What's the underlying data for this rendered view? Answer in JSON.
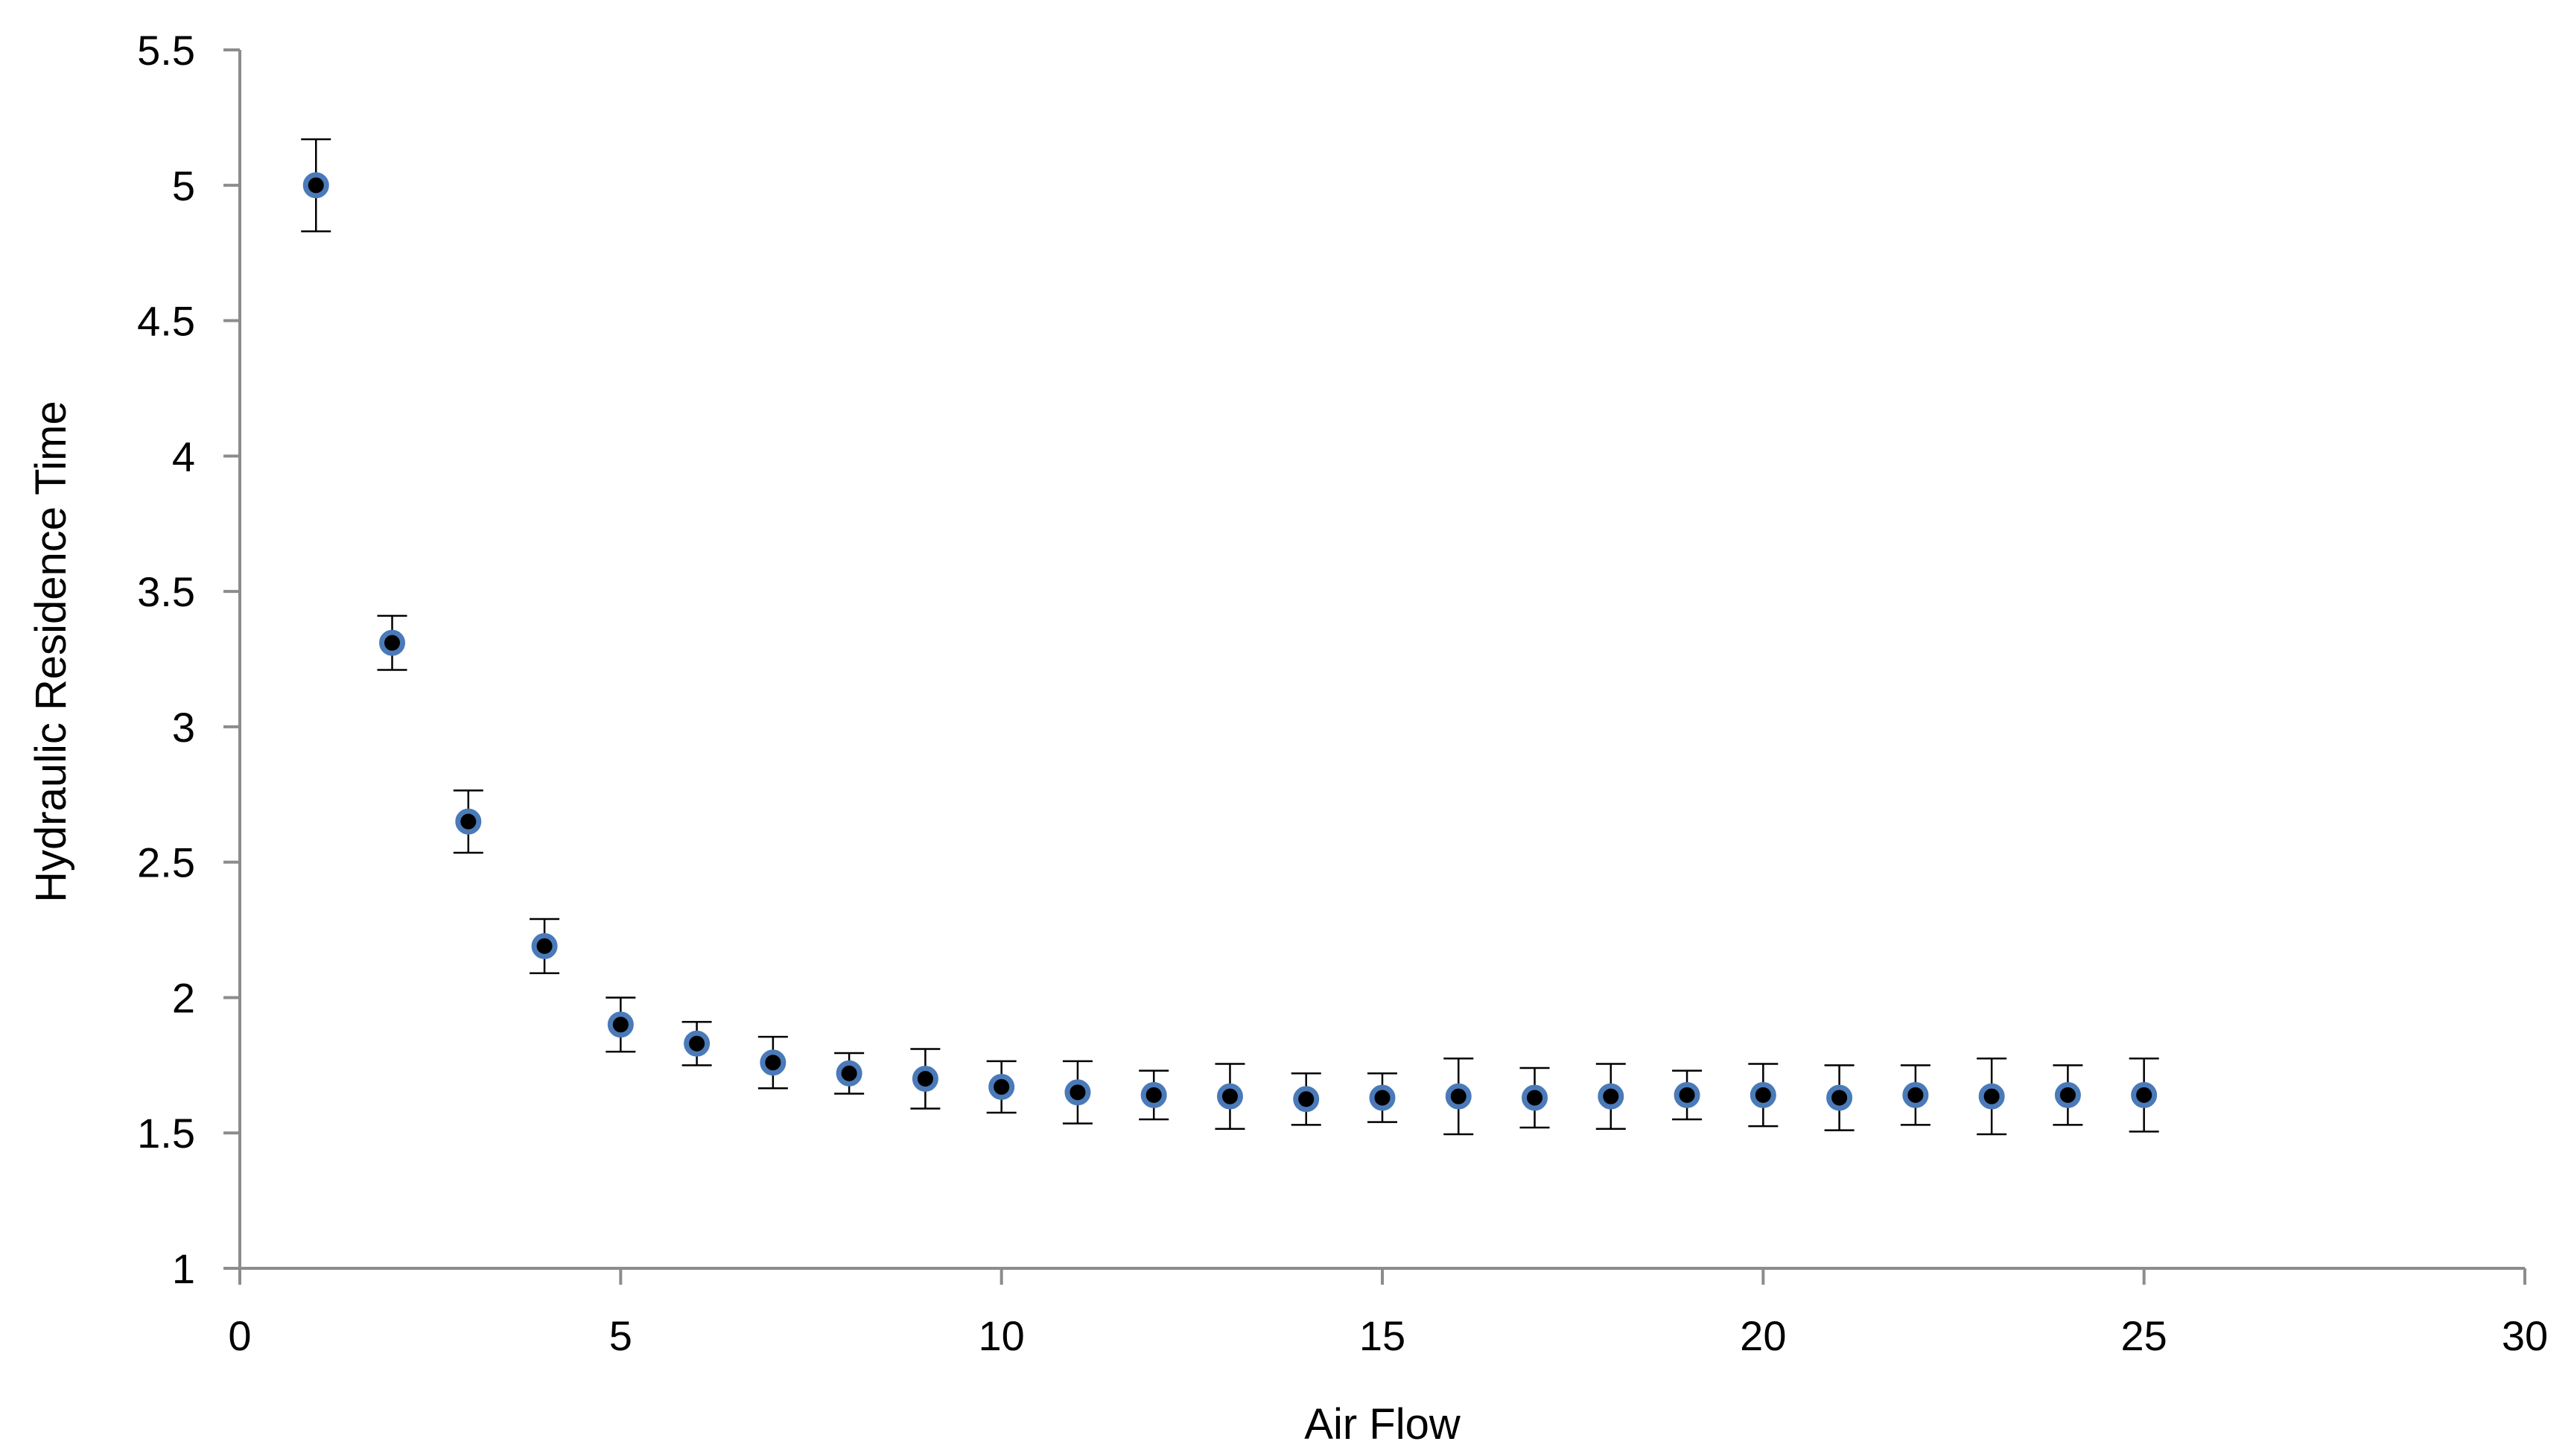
{
  "chart_data": {
    "type": "scatter",
    "title": "",
    "xlabel": "Air Flow",
    "ylabel": "Hydraulic Residence Time",
    "xlim": [
      0,
      30
    ],
    "ylim": [
      1,
      5.5
    ],
    "x_ticks": [
      0,
      5,
      10,
      15,
      20,
      25,
      30
    ],
    "y_ticks": [
      1,
      1.5,
      2,
      2.5,
      3,
      3.5,
      4,
      4.5,
      5,
      5.5
    ],
    "x_tick_labels": [
      "0",
      "5",
      "10",
      "15",
      "20",
      "25",
      "30"
    ],
    "y_tick_labels": [
      "1",
      "1.5",
      "2",
      "2.5",
      "3",
      "3.5",
      "4",
      "4.5",
      "5",
      "5.5"
    ],
    "grid": false,
    "legend": "none",
    "marker_fill": "#000000",
    "marker_edge": "#4a7ab8",
    "series": [
      {
        "x": [
          1,
          2,
          3,
          4,
          5,
          6,
          7,
          8,
          9,
          10,
          11,
          12,
          13,
          14,
          15,
          16,
          17,
          18,
          19,
          20,
          21,
          22,
          23,
          24,
          25
        ],
        "y": [
          5.0,
          3.31,
          2.65,
          2.19,
          1.9,
          1.83,
          1.76,
          1.72,
          1.7,
          1.67,
          1.65,
          1.64,
          1.635,
          1.625,
          1.63,
          1.635,
          1.63,
          1.635,
          1.64,
          1.64,
          1.63,
          1.64,
          1.635,
          1.64,
          1.64
        ],
        "err": [
          0.17,
          0.1,
          0.115,
          0.1,
          0.1,
          0.08,
          0.095,
          0.075,
          0.11,
          0.095,
          0.115,
          0.09,
          0.12,
          0.095,
          0.09,
          0.14,
          0.11,
          0.12,
          0.09,
          0.115,
          0.12,
          0.11,
          0.14,
          0.11,
          0.135
        ]
      }
    ]
  }
}
